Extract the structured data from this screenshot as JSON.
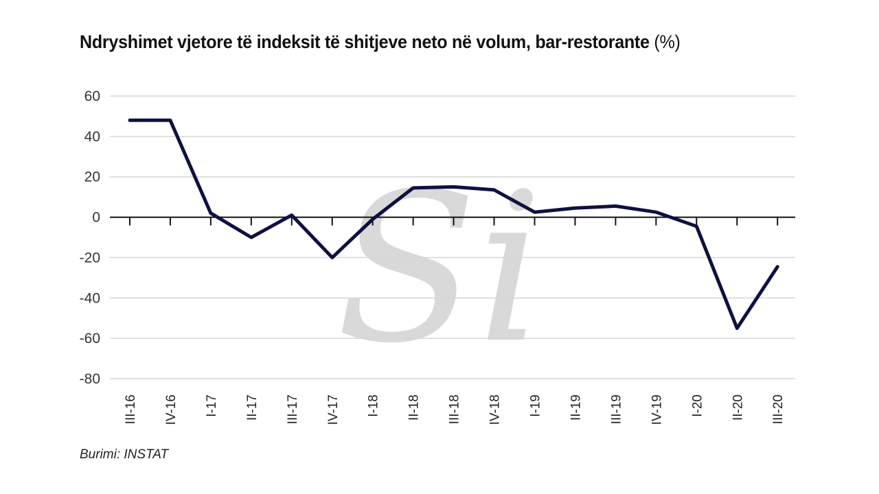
{
  "title": "Ndryshimet vjetore të indeksit të shitjeve neto në volum, bar-restorante",
  "title_unit": "(%)",
  "source": "Burimi: INSTAT",
  "watermark": "Si",
  "colors": {
    "line": "#0e1140",
    "grid": "#d6d6d6",
    "axis": "#111111",
    "watermark": "#d9d9d9"
  },
  "chart_data": {
    "type": "line",
    "title": "Ndryshimet vjetore të indeksit të shitjeve neto në volum, bar-restorante (%)",
    "xlabel": "",
    "ylabel": "",
    "ylim": [
      -80,
      60
    ],
    "yticks": [
      60,
      40,
      20,
      0,
      -20,
      -40,
      -60,
      -80
    ],
    "grid": true,
    "legend": "none",
    "categories": [
      "III-16",
      "IV-16",
      "I-17",
      "II-17",
      "III-17",
      "IV-17",
      "I-18",
      "II-18",
      "III-18",
      "IV-18",
      "I-19",
      "II-19",
      "III-19",
      "IV-19",
      "I-20",
      "II-20",
      "III-20"
    ],
    "series": [
      {
        "values": [
          48,
          48,
          2,
          -10,
          1,
          -20,
          -1,
          14.5,
          15,
          13.5,
          2.5,
          4.5,
          5.5,
          2.5,
          -4.5,
          -55,
          -24.5
        ]
      }
    ]
  }
}
